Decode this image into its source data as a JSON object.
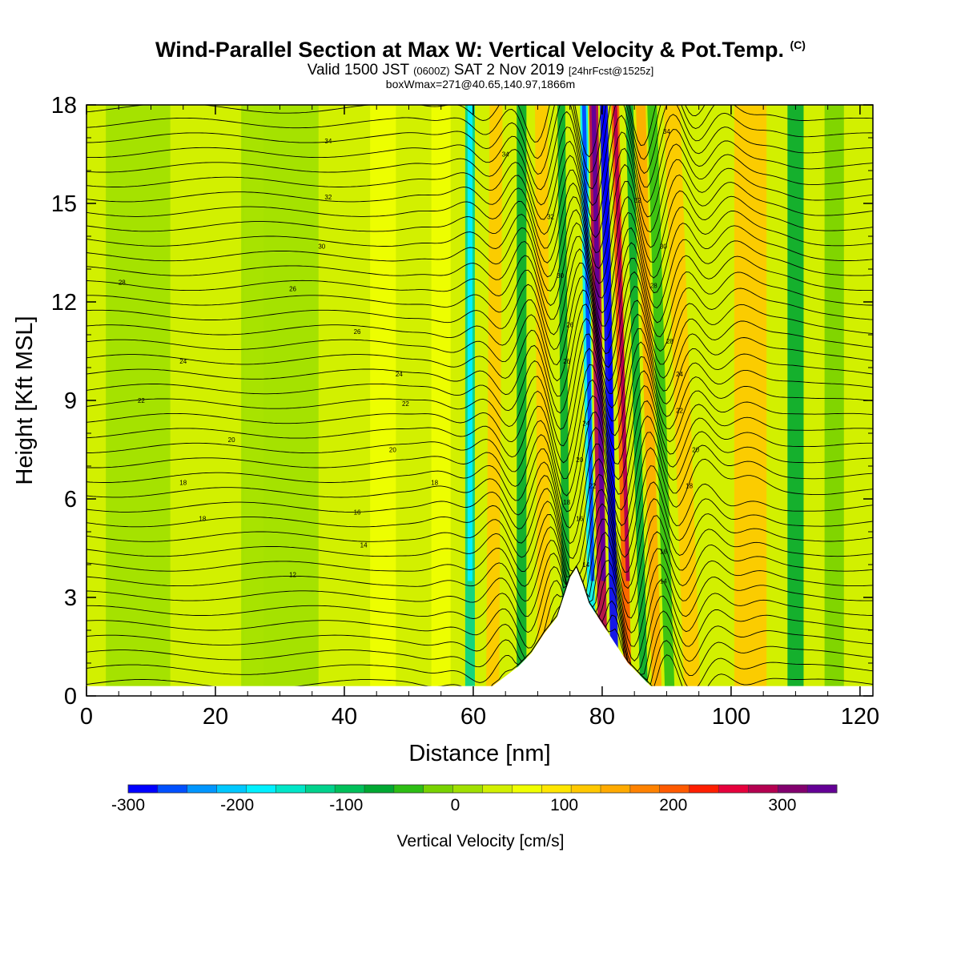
{
  "title": {
    "main": "Wind-Parallel Section at Max W: Vertical Velocity & Pot.Temp.",
    "main_tag": "(C)",
    "valid_prefix": "Valid 1500 JST",
    "valid_utc": "(0600Z)",
    "valid_date": "SAT 2 Nov 2019",
    "valid_fcst": "[24hrFcst@1525z]",
    "box": "boxWmax=271@40.65,140.97,1866m"
  },
  "chart_data": {
    "type": "heatmap",
    "xlabel": "Distance [nm]",
    "ylabel": "Height [Kft MSL]",
    "xlim": [
      0,
      122
    ],
    "ylim": [
      0,
      18
    ],
    "x_ticks": [
      0,
      20,
      40,
      60,
      80,
      100,
      120
    ],
    "y_ticks": [
      0,
      3,
      6,
      9,
      12,
      15,
      18
    ],
    "colorbar": {
      "label": "Vertical Velocity [cm/s]",
      "min": -300,
      "max": 350,
      "step": 25,
      "tick_values": [
        -300,
        -200,
        -100,
        0,
        100,
        200,
        300
      ],
      "tick_labels": [
        "-300",
        "-200",
        "-100",
        "0",
        "100",
        "200",
        "300"
      ],
      "colors": [
        "#0000ff",
        "#0050ff",
        "#0096ff",
        "#00c8ff",
        "#00f0ff",
        "#00e6c8",
        "#00d28c",
        "#00c05a",
        "#00a832",
        "#2dbe14",
        "#78d200",
        "#a0e000",
        "#d2f000",
        "#f0ff00",
        "#ffe600",
        "#ffc800",
        "#ffaa00",
        "#ff8200",
        "#ff5a00",
        "#ff1e00",
        "#e6003c",
        "#b40050",
        "#82006e",
        "#640096"
      ]
    },
    "terrain": {
      "x": [
        0,
        62,
        63,
        65,
        67,
        69,
        71,
        73,
        74,
        75,
        76,
        77,
        78,
        79,
        80,
        81,
        82,
        83,
        84,
        85,
        86,
        87,
        88,
        89,
        122
      ],
      "height": [
        0,
        0,
        0.3,
        0.6,
        0.9,
        1.3,
        1.9,
        2.4,
        3.0,
        3.6,
        3.9,
        3.4,
        2.8,
        2.5,
        2.2,
        1.9,
        1.6,
        1.3,
        1.0,
        0.8,
        0.6,
        0.4,
        0.2,
        0,
        0
      ]
    },
    "vertical_velocity_bands": [
      {
        "x": 8,
        "width": 10,
        "w": -15
      },
      {
        "x": 26,
        "width": 3,
        "w": 40
      },
      {
        "x": 30,
        "width": 12,
        "w": -20
      },
      {
        "x": 46,
        "width": 4,
        "w": 25
      },
      {
        "x": 55,
        "width": 3,
        "w": 30
      },
      {
        "x": 59.5,
        "width": 1.5,
        "w": -130
      },
      {
        "x": 63,
        "width": 2,
        "w": 80
      },
      {
        "x": 67.5,
        "width": 1.5,
        "w": -100
      },
      {
        "x": 71,
        "width": 2,
        "w": 75
      },
      {
        "x": 74.5,
        "width": 1.2,
        "w": -90
      },
      {
        "x": 78.5,
        "width": 1.2,
        "w": -200
      },
      {
        "x": 80.2,
        "width": 1.4,
        "w": 230
      },
      {
        "x": 82,
        "width": 1.2,
        "w": -280
      },
      {
        "x": 84,
        "width": 1.2,
        "w": 170
      },
      {
        "x": 86.5,
        "width": 1.2,
        "w": -90
      },
      {
        "x": 88.5,
        "width": 1.5,
        "w": 120
      },
      {
        "x": 90.5,
        "width": 1.5,
        "w": -70
      },
      {
        "x": 94,
        "width": 2.5,
        "w": 80
      },
      {
        "x": 103,
        "width": 5,
        "w": 90
      },
      {
        "x": 110,
        "width": 2.5,
        "w": -80
      },
      {
        "x": 116,
        "width": 3,
        "w": -30
      }
    ],
    "theta_labels": [
      {
        "x": 37.5,
        "y": 16.9,
        "text": "34"
      },
      {
        "x": 65,
        "y": 16.5,
        "text": "34"
      },
      {
        "x": 90,
        "y": 17.2,
        "text": "34"
      },
      {
        "x": 37.5,
        "y": 15.2,
        "text": "32"
      },
      {
        "x": 72,
        "y": 14.6,
        "text": "32"
      },
      {
        "x": 85.5,
        "y": 15.1,
        "text": "32"
      },
      {
        "x": 36.5,
        "y": 13.7,
        "text": "30"
      },
      {
        "x": 73.5,
        "y": 12.8,
        "text": "30"
      },
      {
        "x": 89.5,
        "y": 13.7,
        "text": "30"
      },
      {
        "x": 5.5,
        "y": 12.6,
        "text": "28"
      },
      {
        "x": 32,
        "y": 12.4,
        "text": "26"
      },
      {
        "x": 42,
        "y": 11.1,
        "text": "26"
      },
      {
        "x": 75,
        "y": 11.3,
        "text": "26"
      },
      {
        "x": 88,
        "y": 12.5,
        "text": "28"
      },
      {
        "x": 90.5,
        "y": 10.8,
        "text": "28"
      },
      {
        "x": 15,
        "y": 10.2,
        "text": "24"
      },
      {
        "x": 48.5,
        "y": 9.8,
        "text": "24"
      },
      {
        "x": 74.5,
        "y": 10.2,
        "text": "26"
      },
      {
        "x": 92,
        "y": 9.8,
        "text": "24"
      },
      {
        "x": 8.5,
        "y": 9.0,
        "text": "22"
      },
      {
        "x": 49.5,
        "y": 8.9,
        "text": "22"
      },
      {
        "x": 77.5,
        "y": 8.3,
        "text": "24"
      },
      {
        "x": 92,
        "y": 8.7,
        "text": "22"
      },
      {
        "x": 22.5,
        "y": 7.8,
        "text": "20"
      },
      {
        "x": 47.5,
        "y": 7.5,
        "text": "20"
      },
      {
        "x": 94.5,
        "y": 7.5,
        "text": "20"
      },
      {
        "x": 15,
        "y": 6.5,
        "text": "18"
      },
      {
        "x": 54,
        "y": 6.5,
        "text": "18"
      },
      {
        "x": 76.5,
        "y": 7.2,
        "text": "20"
      },
      {
        "x": 78.5,
        "y": 6.4,
        "text": "22"
      },
      {
        "x": 93.5,
        "y": 6.4,
        "text": "18"
      },
      {
        "x": 18,
        "y": 5.4,
        "text": "18"
      },
      {
        "x": 42,
        "y": 5.6,
        "text": "16"
      },
      {
        "x": 74.5,
        "y": 5.9,
        "text": "18"
      },
      {
        "x": 76.5,
        "y": 5.4,
        "text": "16"
      },
      {
        "x": 43,
        "y": 4.6,
        "text": "14"
      },
      {
        "x": 77.5,
        "y": 4.0,
        "text": "14"
      },
      {
        "x": 89.5,
        "y": 4.4,
        "text": "16"
      },
      {
        "x": 32,
        "y": 3.7,
        "text": "12"
      },
      {
        "x": 89.5,
        "y": 3.5,
        "text": "14"
      }
    ]
  }
}
